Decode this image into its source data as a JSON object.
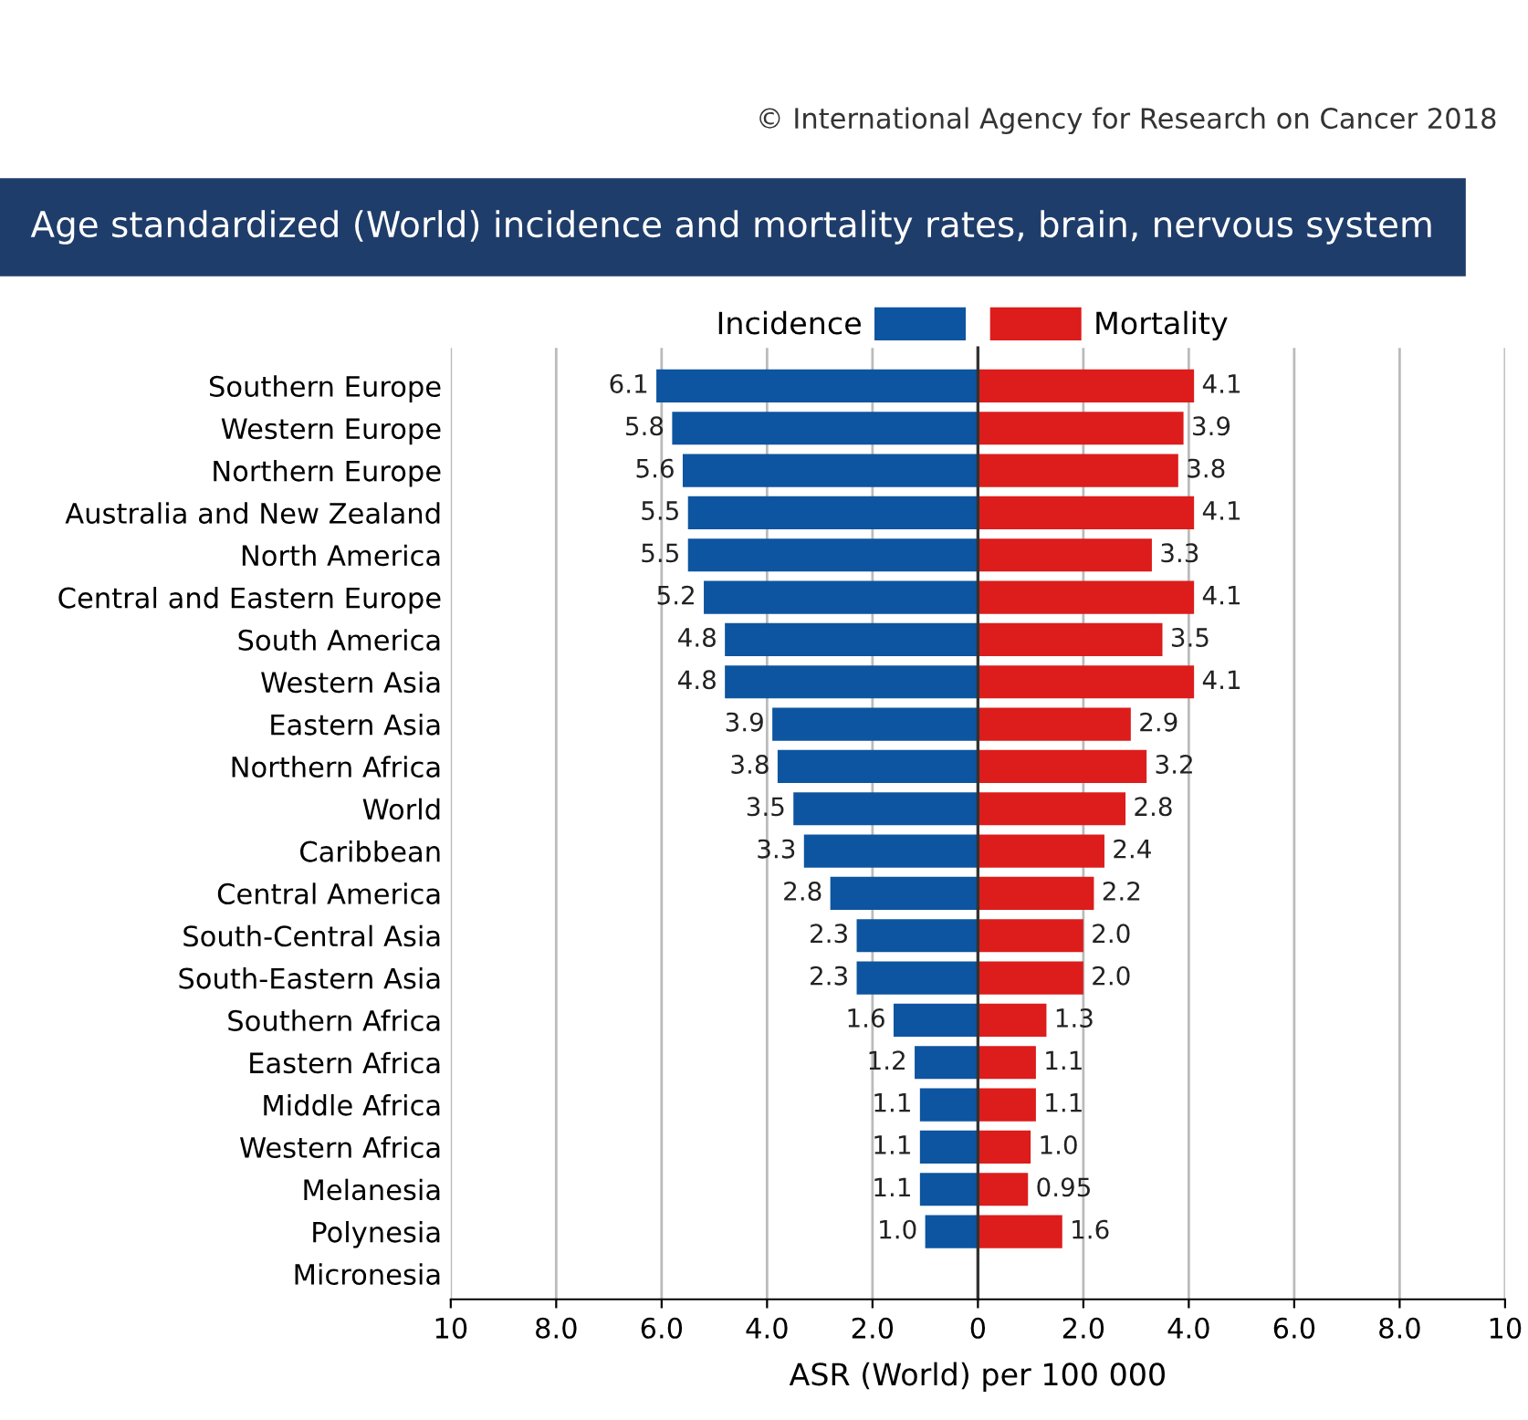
{
  "chart_data": [
    {
      "type": "bar",
      "orientation": "horizontal",
      "title": "Age standardized (World) incidence and mortality rates, brain, nervous system",
      "xlabel": "ASR (World) per 100 000",
      "annotations": [
        "© International Agency for Research on Cancer 2018"
      ],
      "categories": [
        "Southern Europe",
        "Western Europe",
        "Northern Europe",
        "Australia and New Zealand",
        "North America",
        "Central and Eastern Europe",
        "South America",
        "Western Asia",
        "Eastern Asia",
        "Northern Africa",
        "World",
        "Caribbean",
        "Central America",
        "South-Central Asia",
        "South-Eastern Asia",
        "Southern Africa",
        "Eastern Africa",
        "Middle Africa",
        "Western Africa",
        "Melanesia",
        "Polynesia",
        "Micronesia"
      ],
      "series": [
        {
          "name": "Incidence",
          "color": "#0d55a0",
          "values": [
            6.1,
            5.8,
            5.6,
            5.5,
            5.5,
            5.2,
            4.8,
            4.8,
            3.9,
            3.8,
            3.5,
            3.3,
            2.8,
            2.3,
            2.3,
            1.6,
            1.2,
            1.1,
            1.1,
            1.1,
            1.0,
            null
          ],
          "value_labels": [
            "6.1",
            "5.8",
            "5.6",
            "5.5",
            "5.5",
            "5.2",
            "4.8",
            "4.8",
            "3.9",
            "3.8",
            "3.5",
            "3.3",
            "2.8",
            "2.3",
            "2.3",
            "1.6",
            "1.2",
            "1.1",
            "1.1",
            "1.1",
            "1.0",
            null
          ]
        }
      ],
      "xlim": [
        10,
        0
      ],
      "xticks": [
        10,
        {
          "value": 8,
          "label": "8.0"
        },
        {
          "value": 6,
          "label": "6.0"
        },
        {
          "value": 4,
          "label": "4.0"
        },
        {
          "value": 2,
          "label": "2.0"
        }
      ],
      "grid": "x",
      "legend": "top right"
    },
    {
      "type": "bar",
      "orientation": "horizontal",
      "categories": [
        null,
        null,
        null,
        null,
        null,
        null,
        null,
        null,
        null,
        null,
        null,
        null,
        null,
        null,
        null,
        null,
        null,
        null,
        null,
        null,
        null,
        null
      ],
      "series": [
        {
          "name": "Mortality",
          "color": "#dd1c1c",
          "values": [
            4.1,
            3.9,
            3.8,
            4.1,
            3.3,
            4.1,
            3.5,
            4.1,
            2.9,
            3.2,
            2.8,
            2.4,
            2.2,
            2.0,
            2.0,
            1.3,
            1.1,
            1.1,
            1.0,
            0.95,
            1.6,
            null
          ],
          "value_labels": [
            "4.1",
            "3.9",
            "3.8",
            "4.1",
            "3.3",
            "4.1",
            "3.5",
            "4.1",
            "2.9",
            "3.2",
            "2.8",
            "2.4",
            "2.2",
            "2.0",
            "2.0",
            "1.3",
            "1.1",
            "1.1",
            "1.0",
            "0.95",
            "1.6",
            null
          ]
        }
      ],
      "xlim": [
        0,
        10
      ],
      "xticks": [
        0,
        {
          "value": 2,
          "label": "2.0"
        },
        {
          "value": 4,
          "label": "4.0"
        },
        {
          "value": 6,
          "label": "6.0"
        },
        {
          "value": 8,
          "label": "8.0"
        },
        10
      ],
      "grid": "x",
      "legend": "top left",
      "tick_labels": "x"
    }
  ]
}
